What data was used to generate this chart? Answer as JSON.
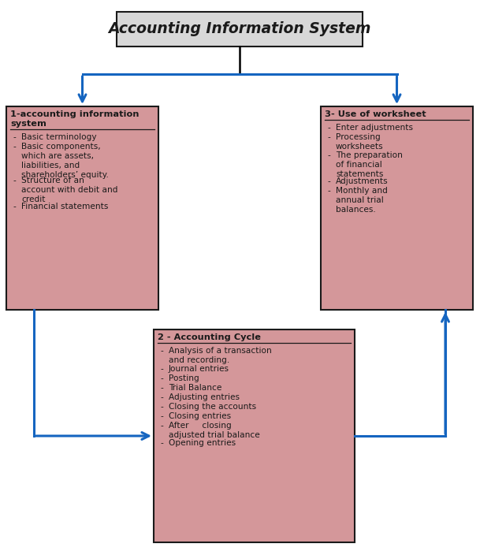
{
  "title": "Accounting Information System",
  "title_fontsize": 13.5,
  "box_bg_color": "#D4979A",
  "title_box_bg": "#D8D8D8",
  "box_edge_color": "#1a1a1a",
  "arrow_color": "#1565C0",
  "text_color": "#1a1a1a",
  "box1_title": "1-accounting information\nsystem",
  "box1_items": [
    "Basic terminology",
    "Basic components,\nwhich are assets,\nliabilities, and\nshareholders’ equity.",
    "Structure of an\naccount with debit and\ncredit",
    "Financial statements"
  ],
  "box2_title": "2 - Accounting Cycle",
  "box2_items": [
    "Analysis of a transaction\nand recording.",
    "Journal entries",
    "Posting",
    "Trial Balance",
    "Adjusting entries",
    "Closing the accounts",
    "Closing entries",
    "After     closing\nadjusted trial balance",
    "Opening entries"
  ],
  "box3_title": "3- Use of worksheet",
  "box3_items": [
    "Enter adjustments",
    "Processing\nworksheets",
    "The preparation\nof financial\nstatements",
    "Adjustments",
    "Monthly and\nannual trial\nbalances."
  ],
  "fig_w": 6.09,
  "fig_h": 6.99,
  "dpi": 100
}
